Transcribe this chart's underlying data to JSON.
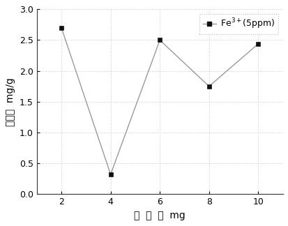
{
  "x": [
    2,
    4,
    6,
    8,
    10
  ],
  "y": [
    2.7,
    0.32,
    2.5,
    1.75,
    2.44
  ],
  "line_color": "#999999",
  "marker_color": "#111111",
  "marker": "s",
  "marker_size": 5,
  "line_width": 1.0,
  "xlabel_chars": [
    "交",
    " ",
    "联",
    " ",
    "剂",
    "  mg"
  ],
  "ylabel_chars": "吸附量  mg/g",
  "xlim": [
    1,
    11
  ],
  "ylim": [
    0.0,
    3.0
  ],
  "xticks": [
    2,
    4,
    6,
    8,
    10
  ],
  "yticks": [
    0.0,
    0.5,
    1.0,
    1.5,
    2.0,
    2.5,
    3.0
  ],
  "grid_color": "#c8c8c8",
  "grid_style": ":",
  "background_color": "#ffffff",
  "legend_edge_color": "#bbbbbb",
  "font_size_ticks": 9,
  "font_size_label": 10
}
